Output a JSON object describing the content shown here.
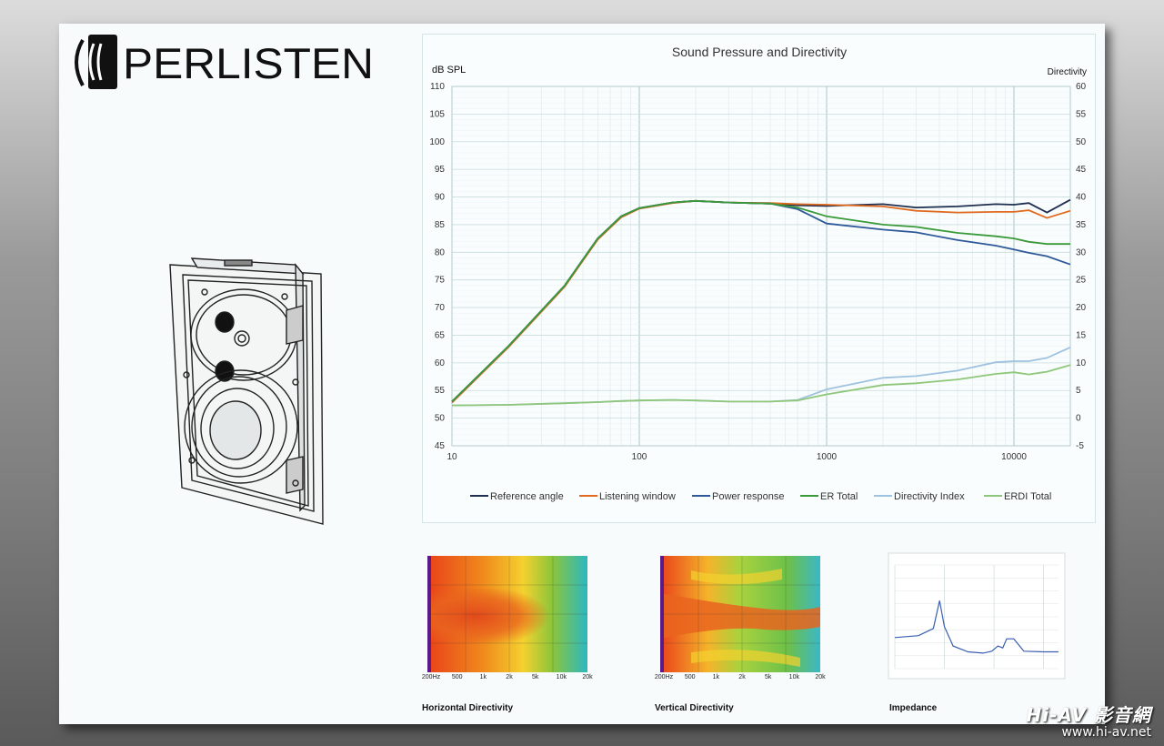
{
  "brand": {
    "logo_text": "PERLISTEN"
  },
  "chart_data": [
    {
      "type": "line",
      "title": "Sound Pressure and Directivity",
      "ylabel": "dB SPL",
      "y2label": "Directivity",
      "xscale": "log",
      "xlim": [
        10,
        20000
      ],
      "ylim": [
        45,
        110
      ],
      "y2lim": [
        -5,
        60
      ],
      "x_ticks": [
        "10",
        "100",
        "1000",
        "10000"
      ],
      "y_ticks": [
        "45",
        "50",
        "55",
        "60",
        "65",
        "70",
        "75",
        "80",
        "85",
        "90",
        "95",
        "100",
        "105",
        "110"
      ],
      "y2_ticks": [
        "-5",
        "0",
        "5",
        "10",
        "15",
        "20",
        "25",
        "30",
        "35",
        "40",
        "45",
        "50",
        "55",
        "60"
      ],
      "grid": true,
      "legend_position": "bottom",
      "x": [
        10,
        20,
        40,
        60,
        80,
        100,
        150,
        200,
        300,
        500,
        700,
        1000,
        2000,
        3000,
        5000,
        8000,
        10000,
        12000,
        15000,
        20000
      ],
      "series": [
        {
          "name": "Reference angle",
          "axis": "left",
          "color": "#1f2f4f",
          "values": [
            53,
            63,
            74,
            82.5,
            86.5,
            88,
            89,
            89.3,
            89,
            88.8,
            88.5,
            88.4,
            88.7,
            88.1,
            88.3,
            88.7,
            88.6,
            88.9,
            87.2,
            89.5
          ]
        },
        {
          "name": "Listening window",
          "axis": "left",
          "color": "#e06a1f",
          "values": [
            52.8,
            62.8,
            73.8,
            82.3,
            86.3,
            87.9,
            88.9,
            89.3,
            89,
            88.9,
            88.7,
            88.6,
            88.3,
            87.5,
            87.2,
            87.3,
            87.3,
            87.6,
            86.2,
            87.5
          ]
        },
        {
          "name": "Power response",
          "axis": "left",
          "color": "#2f5a9a",
          "values": [
            53,
            63,
            74,
            82.5,
            86.5,
            88,
            89,
            89.3,
            89,
            88.8,
            87.8,
            85.2,
            84.1,
            83.6,
            82.2,
            81.2,
            80.5,
            79.9,
            79.3,
            77.8
          ]
        },
        {
          "name": "ER Total",
          "axis": "left",
          "color": "#3a9a3a",
          "values": [
            53,
            63,
            74,
            82.5,
            86.5,
            88,
            89,
            89.3,
            89,
            88.8,
            88.1,
            86.5,
            85,
            84.6,
            83.5,
            82.9,
            82.5,
            81.9,
            81.5,
            81.5
          ]
        },
        {
          "name": "Directivity Index",
          "axis": "right",
          "color": "#9fc2e0",
          "values": [
            2.3,
            2.4,
            2.7,
            2.9,
            3.1,
            3.2,
            3.3,
            3.2,
            3,
            3,
            3.3,
            5.2,
            7.3,
            7.6,
            8.6,
            10.1,
            10.3,
            10.3,
            10.9,
            12.8
          ]
        },
        {
          "name": "ERDI Total",
          "axis": "right",
          "color": "#8fc77a",
          "values": [
            2.3,
            2.4,
            2.7,
            2.9,
            3.1,
            3.2,
            3.3,
            3.2,
            3,
            3,
            3.2,
            4.3,
            6,
            6.3,
            7,
            8,
            8.3,
            7.9,
            8.4,
            9.6
          ]
        }
      ]
    },
    {
      "type": "heatmap",
      "caption": "Horizontal Directivity",
      "x_ticks": [
        "200Hz",
        "500",
        "1k",
        "2k",
        "5k",
        "10k",
        "20k"
      ]
    },
    {
      "type": "heatmap",
      "caption": "Vertical Directivity",
      "x_ticks": [
        "200Hz",
        "500",
        "1k",
        "2k",
        "5k",
        "10k",
        "20k"
      ]
    },
    {
      "type": "line",
      "caption": "Impedance",
      "xscale": "log",
      "x": [
        10,
        30,
        60,
        80,
        100,
        150,
        300,
        600,
        900,
        1200,
        1500,
        1800,
        2500,
        4000,
        10000,
        20000
      ],
      "series": [
        {
          "color": "#3a5fb0",
          "values": [
            4.8,
            5.1,
            6.2,
            10.5,
            6.5,
            3.5,
            2.6,
            2.4,
            2.7,
            3.5,
            3.2,
            4.6,
            4.6,
            2.7,
            2.6,
            2.6
          ]
        }
      ]
    }
  ],
  "watermark": {
    "brand": "Hi-AV 影音網",
    "url": "www.hi-av.net"
  }
}
